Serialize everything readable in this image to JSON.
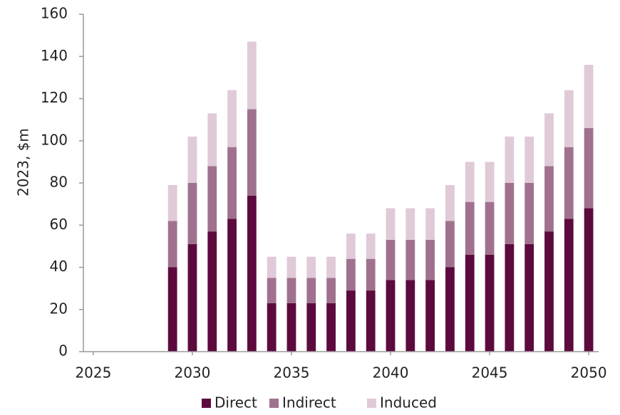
{
  "chart_data": {
    "type": "bar",
    "stacked": true,
    "ylabel": "2023, $m",
    "x": [
      2025,
      2026,
      2027,
      2028,
      2029,
      2030,
      2031,
      2032,
      2033,
      2034,
      2035,
      2036,
      2037,
      2038,
      2039,
      2040,
      2041,
      2042,
      2043,
      2044,
      2045,
      2046,
      2047,
      2048,
      2049,
      2050
    ],
    "series": [
      {
        "name": "Direct",
        "color": "#5c0a3e",
        "values": [
          0,
          0,
          0,
          0,
          40,
          51,
          57,
          63,
          74,
          23,
          23,
          23,
          23,
          29,
          29,
          34,
          34,
          34,
          40,
          46,
          46,
          51,
          51,
          57,
          63,
          68
        ]
      },
      {
        "name": "Indirect",
        "color": "#a0718f",
        "values": [
          0,
          0,
          0,
          0,
          22,
          29,
          31,
          34,
          41,
          12,
          12,
          12,
          12,
          15,
          15,
          19,
          19,
          19,
          22,
          25,
          25,
          29,
          29,
          31,
          34,
          38
        ]
      },
      {
        "name": "Induced",
        "color": "#e0cad8",
        "values": [
          0,
          0,
          0,
          0,
          17,
          22,
          25,
          27,
          32,
          10,
          10,
          10,
          10,
          12,
          12,
          15,
          15,
          15,
          17,
          19,
          19,
          22,
          22,
          25,
          27,
          30
        ]
      }
    ],
    "xlim": [
      2024.5,
      2050.5
    ],
    "xticks": [
      2025,
      2030,
      2035,
      2040,
      2045,
      2050
    ],
    "ylim": [
      0,
      160
    ],
    "yticks": [
      0,
      20,
      40,
      60,
      80,
      100,
      120,
      140,
      160
    ],
    "grid": false,
    "legend": "bottom"
  }
}
